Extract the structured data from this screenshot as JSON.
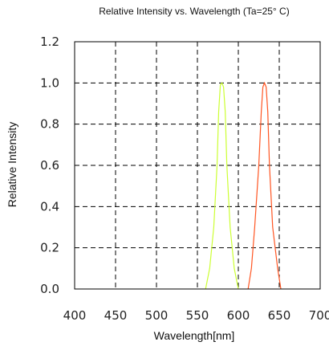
{
  "chart_data": {
    "type": "line",
    "title": "Relative Intensity vs. Wavelength (Ta=25° C)",
    "xlabel": "Wavelength[nm]",
    "ylabel": "Relative Intensity",
    "xlim": [
      400,
      700
    ],
    "ylim": [
      0,
      1.2
    ],
    "x_ticks": [
      400,
      450,
      500,
      550,
      600,
      650,
      700
    ],
    "x_tick_labels": [
      "400",
      "450",
      "500",
      "550",
      "600",
      "650",
      "700"
    ],
    "y_ticks": [
      0,
      0.2,
      0.4,
      0.6,
      0.8,
      1.0,
      1.2
    ],
    "y_tick_labels": [
      "0.0",
      "0.2",
      "0.4",
      "0.6",
      "0.8",
      "1.0",
      "1.2"
    ],
    "grid": "dashed",
    "series": [
      {
        "color": "#ccff33",
        "x": [
          560,
          565,
          570,
          574,
          576,
          578,
          580,
          582,
          584,
          586,
          590,
          595,
          600
        ],
        "y": [
          0.0,
          0.1,
          0.3,
          0.6,
          0.86,
          0.99,
          1.0,
          0.98,
          0.86,
          0.6,
          0.3,
          0.1,
          0.0
        ]
      },
      {
        "color": "#ff5522",
        "x": [
          612,
          616,
          620,
          625,
          628,
          630,
          632,
          634,
          636,
          638,
          642,
          648,
          652
        ],
        "y": [
          0.0,
          0.1,
          0.3,
          0.6,
          0.86,
          0.98,
          1.0,
          0.98,
          0.86,
          0.6,
          0.3,
          0.1,
          0.0
        ]
      }
    ]
  }
}
